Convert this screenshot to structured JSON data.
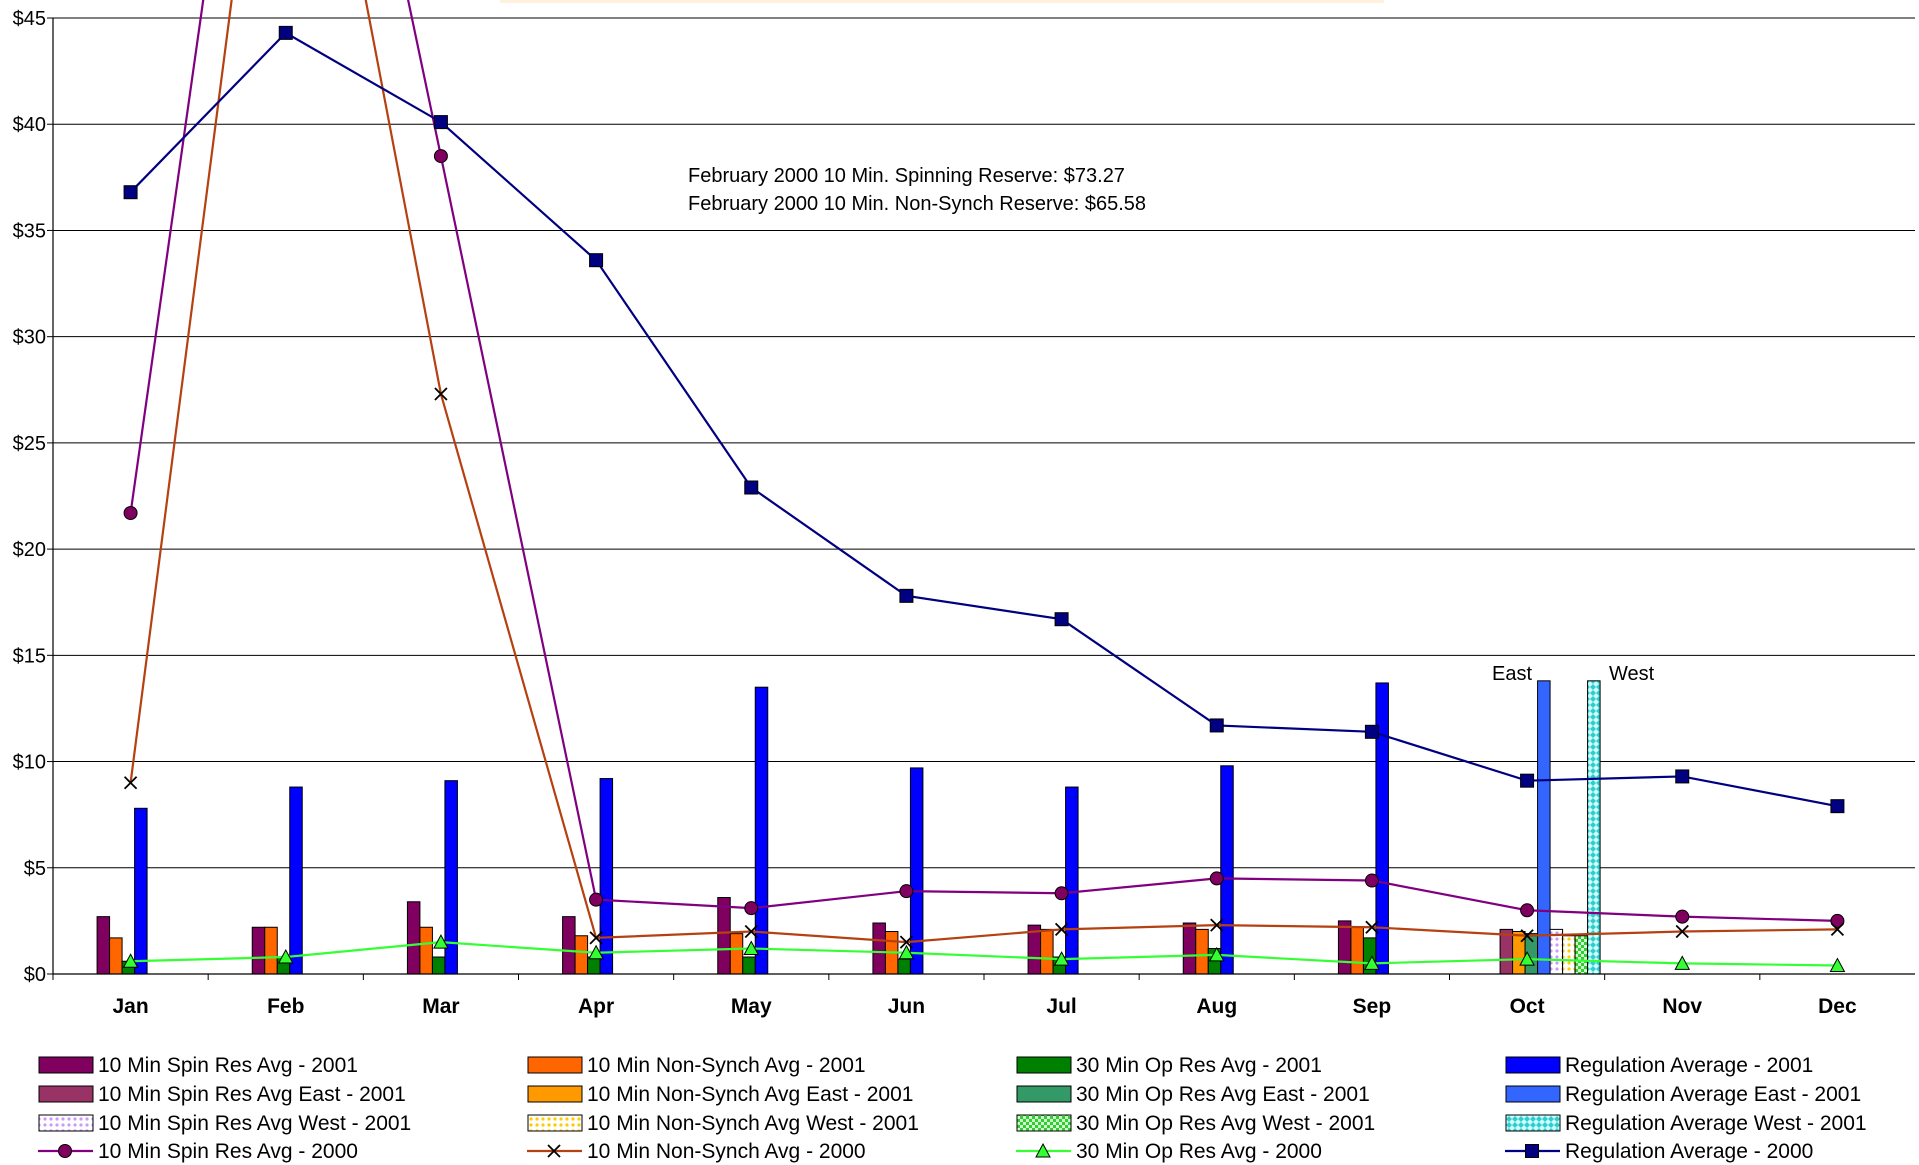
{
  "chart_data": {
    "type": "bar",
    "categories": [
      "Jan",
      "Feb",
      "Mar",
      "Apr",
      "May",
      "Jun",
      "Jul",
      "Aug",
      "Sep",
      "Oct",
      "Nov",
      "Dec"
    ],
    "y_tick_labels": [
      "$0",
      "$5",
      "$10",
      "$15",
      "$20",
      "$25",
      "$30",
      "$35",
      "$40",
      "$45"
    ],
    "ylim": [
      0,
      45
    ],
    "grid": "horizontal",
    "legend_position": "bottom",
    "annotations": [
      "February 2000 10 Min. Spinning Reserve: $73.27",
      "February 2000 10 Min. Non-Synch Reserve: $65.58"
    ],
    "bar_labels": {
      "east": "East",
      "west": "West"
    },
    "bar_series": [
      {
        "name": "10 Min Spin Res Avg - 2001",
        "color": "#800060",
        "values": [
          2.7,
          2.2,
          3.4,
          2.7,
          3.6,
          2.4,
          2.3,
          2.4,
          2.5,
          null,
          null,
          null
        ]
      },
      {
        "name": "10 Min Non-Synch Avg - 2001",
        "color": "#ff6600",
        "values": [
          1.7,
          2.2,
          2.2,
          1.8,
          1.9,
          2.0,
          2.1,
          2.1,
          2.2,
          null,
          null,
          null
        ]
      },
      {
        "name": "30 Min Op Res Avg - 2001",
        "color": "#008000",
        "values": [
          0.6,
          0.8,
          0.8,
          0.8,
          0.8,
          0.7,
          0.8,
          1.2,
          1.7,
          null,
          null,
          null
        ]
      },
      {
        "name": "Regulation Average - 2001",
        "color": "#0000ff",
        "values": [
          7.8,
          8.8,
          9.1,
          9.2,
          13.5,
          9.7,
          8.8,
          9.8,
          13.7,
          null,
          null,
          null
        ]
      },
      {
        "name": "10 Min Spin Res Avg East - 2001",
        "color": "#993366",
        "values": [
          null,
          null,
          null,
          null,
          null,
          null,
          null,
          null,
          null,
          2.1,
          null,
          null
        ]
      },
      {
        "name": "10 Min Non-Synch Avg East - 2001",
        "color": "#ff9900",
        "values": [
          null,
          null,
          null,
          null,
          null,
          null,
          null,
          null,
          null,
          2.0,
          null,
          null
        ]
      },
      {
        "name": "30 Min Op Res Avg East - 2001",
        "color": "#339966",
        "values": [
          null,
          null,
          null,
          null,
          null,
          null,
          null,
          null,
          null,
          1.9,
          null,
          null
        ]
      },
      {
        "name": "Regulation Average East - 2001",
        "color": "#3366ff",
        "values": [
          null,
          null,
          null,
          null,
          null,
          null,
          null,
          null,
          null,
          13.8,
          null,
          null
        ]
      },
      {
        "name": "10 Min Spin Res Avg West - 2001",
        "color": "#cc99ff",
        "values": [
          null,
          null,
          null,
          null,
          null,
          null,
          null,
          null,
          null,
          2.1,
          null,
          null
        ]
      },
      {
        "name": "10 Min Non-Synch Avg West - 2001",
        "color": "#ffcc00",
        "values": [
          null,
          null,
          null,
          null,
          null,
          null,
          null,
          null,
          null,
          1.8,
          null,
          null
        ]
      },
      {
        "name": "30 Min Op Res Avg West - 2001",
        "color": "#33cc33",
        "values": [
          null,
          null,
          null,
          null,
          null,
          null,
          null,
          null,
          null,
          1.8,
          null,
          null
        ]
      },
      {
        "name": "Regulation Average West - 2001",
        "color": "#33cccc",
        "values": [
          null,
          null,
          null,
          null,
          null,
          null,
          null,
          null,
          null,
          13.8,
          null,
          null
        ]
      }
    ],
    "line_series": [
      {
        "name": "10 Min Spin Res Avg - 2000",
        "color": "#800080",
        "marker": "circle",
        "values": [
          21.7,
          73.27,
          38.5,
          3.5,
          3.1,
          3.9,
          3.8,
          4.5,
          4.4,
          3.0,
          2.7,
          2.5
        ]
      },
      {
        "name": "10 Min Non-Synch Avg - 2000",
        "color": "#b54010",
        "marker": "x",
        "values": [
          9.0,
          65.58,
          27.3,
          1.7,
          2.0,
          1.5,
          2.1,
          2.3,
          2.2,
          1.8,
          2.0,
          2.1
        ]
      },
      {
        "name": "30 Min Op Res Avg - 2000",
        "color": "#33ff33",
        "marker": "triangle",
        "values": [
          0.6,
          0.8,
          1.5,
          1.0,
          1.2,
          1.0,
          0.7,
          0.9,
          0.5,
          0.7,
          0.5,
          0.4
        ]
      },
      {
        "name": "Regulation Average - 2000",
        "color": "#000080",
        "marker": "square",
        "values": [
          36.8,
          44.3,
          40.1,
          33.6,
          22.9,
          17.8,
          16.7,
          11.7,
          11.4,
          9.1,
          9.3,
          7.9
        ]
      }
    ]
  },
  "legend": {
    "rows": [
      [
        "10 Min Spin Res Avg - 2001",
        "10 Min Non-Synch Avg - 2001",
        "30 Min Op Res Avg - 2001",
        "Regulation Average - 2001"
      ],
      [
        "10 Min Spin Res Avg East - 2001",
        "10 Min Non-Synch Avg East - 2001",
        "30 Min Op Res Avg East - 2001",
        "Regulation Average East - 2001"
      ],
      [
        "10 Min Spin Res Avg West - 2001",
        "10 Min Non-Synch Avg West - 2001",
        "30 Min Op Res Avg West - 2001",
        "Regulation Average West - 2001"
      ],
      [
        "10 Min Spin Res Avg - 2000",
        "10 Min Non-Synch Avg - 2000",
        "30 Min Op Res Avg - 2000",
        "Regulation Average - 2000"
      ]
    ]
  }
}
